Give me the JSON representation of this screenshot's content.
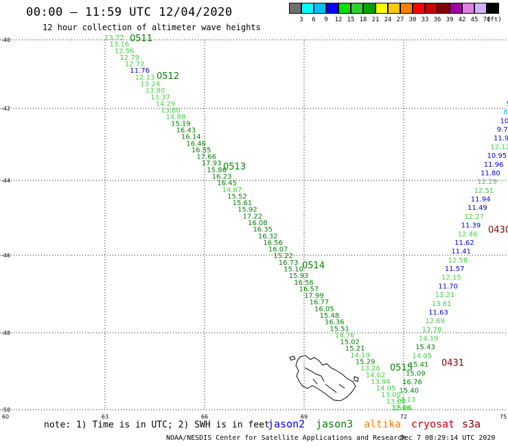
{
  "header": {
    "title": "00:00 — 11:59 UTC 12/04/2020",
    "subtitle": "12 hour collection of altimeter wave heights"
  },
  "legend": {
    "colors": [
      "#707070",
      "#00ffff",
      "#00bfff",
      "#0000ff",
      "#00e000",
      "#30d030",
      "#00a000",
      "#ffff00",
      "#ffc800",
      "#ff8000",
      "#ff0000",
      "#c80000",
      "#800000",
      "#a000a0",
      "#e080e0",
      "#d0b0ff",
      "#000000"
    ],
    "labels": [
      "3",
      "6",
      "9",
      "12",
      "15",
      "18",
      "21",
      "24",
      "27",
      "30",
      "33",
      "36",
      "39",
      "42",
      "45",
      "70",
      "(ft)"
    ]
  },
  "axes": {
    "lat_labels": [
      "-40",
      "-42",
      "-44",
      "-46",
      "-48",
      "-50"
    ],
    "lon_labels": [
      "60",
      "63",
      "66",
      "69",
      "72",
      "75"
    ]
  },
  "track_labels": [
    {
      "text": "0511",
      "color": "#008000"
    },
    {
      "text": "0512",
      "color": "#008000"
    },
    {
      "text": "0513",
      "color": "#008000"
    },
    {
      "text": "0514",
      "color": "#008000"
    },
    {
      "text": "0515",
      "color": "#008000"
    },
    {
      "text": "0430",
      "color": "#800000"
    },
    {
      "text": "0431",
      "color": "#800000"
    }
  ],
  "track_a_values": [
    "13.72",
    "13.16",
    "12.56",
    "12.79",
    "12.72",
    "11.76",
    "12.13",
    "13.24",
    "13.80",
    "13.37",
    "14.29",
    "13.80",
    "14.88",
    "15.19",
    "16.43",
    "16.14",
    "16.46",
    "16.55",
    "17.66",
    "17.93",
    "15.86",
    "16.23",
    "16.45",
    "14.87",
    "15.52",
    "15.61",
    "15.92",
    "17.22",
    "16.08",
    "16.35",
    "16.32",
    "16.56",
    "16.07",
    "15.22",
    "16.73",
    "15.10",
    "15.93",
    "16.56",
    "16.57",
    "17.99",
    "16.77",
    "16.05",
    "15.48",
    "16.36",
    "15.51",
    "14.76",
    "15.02",
    "15.21",
    "14.19",
    "15.29",
    "13.26",
    "14.62",
    "13.94",
    "14.05",
    "13.00",
    "13.00",
    "12.06"
  ],
  "track_a_colors": [
    "#40d040",
    "#40d040",
    "#40d040",
    "#40d040",
    "#40d040",
    "#0000cc",
    "#40d040",
    "#40d040",
    "#40d040",
    "#40d040",
    "#40d040",
    "#40d040",
    "#40d040",
    "#008000",
    "#008000",
    "#008000",
    "#008000",
    "#008000",
    "#008000",
    "#008000",
    "#008000",
    "#008000",
    "#008000",
    "#40d040",
    "#008000",
    "#008000",
    "#008000",
    "#008000",
    "#008000",
    "#008000",
    "#008000",
    "#008000",
    "#008000",
    "#008000",
    "#008000",
    "#008000",
    "#008000",
    "#008000",
    "#008000",
    "#008000",
    "#008000",
    "#008000",
    "#008000",
    "#008000",
    "#008000",
    "#40d040",
    "#008000",
    "#008000",
    "#40d040",
    "#008000",
    "#40d040",
    "#40d040",
    "#40d040",
    "#40d040",
    "#40d040",
    "#40d040",
    "#40d040"
  ],
  "track_b_values": [
    "9",
    "8",
    "10.",
    "9.7",
    "11.9",
    "12.12",
    "10.95",
    "11.96",
    "11.80",
    "12.29",
    "12.51",
    "11.94",
    "11.49",
    "12.27",
    "11.39",
    "12.46",
    "11.62",
    "11.41",
    "12.58",
    "11.57",
    "12.15",
    "11.70",
    "13.21",
    "13.61",
    "11.63",
    "12.69",
    "13.78",
    "14.19",
    "15.43",
    "14.05",
    "15.41",
    "15.09",
    "16.76",
    "15.40",
    "14.13",
    "15.06"
  ],
  "track_b_colors": [
    "#0000cc",
    "#00bfff",
    "#0000cc",
    "#0000cc",
    "#0000cc",
    "#40d040",
    "#0000cc",
    "#0000cc",
    "#0000cc",
    "#40d040",
    "#40d040",
    "#0000cc",
    "#0000cc",
    "#40d040",
    "#0000cc",
    "#40d040",
    "#0000cc",
    "#0000cc",
    "#40d040",
    "#0000cc",
    "#40d040",
    "#0000cc",
    "#40d040",
    "#40d040",
    "#0000cc",
    "#40d040",
    "#40d040",
    "#40d040",
    "#008000",
    "#40d040",
    "#008000",
    "#008000",
    "#008000",
    "#008000",
    "#40d040",
    "#40d040"
  ],
  "footer": {
    "note": "note: 1) Time is in UTC; 2) SWH is in feet",
    "satellites": [
      {
        "name": "jason2",
        "color": "#0000ff"
      },
      {
        "name": "jason3",
        "color": "#008000"
      },
      {
        "name": "altika",
        "color": "#ff8000"
      },
      {
        "name": "cryosat",
        "color": "#cc0000"
      },
      {
        "name": "s3a",
        "color": "#800000"
      }
    ],
    "credit": "NOAA/NESDIS Center for Satellite Applications and Research",
    "timestamp": "Dec  7 08:29:14 UTC 2020"
  }
}
